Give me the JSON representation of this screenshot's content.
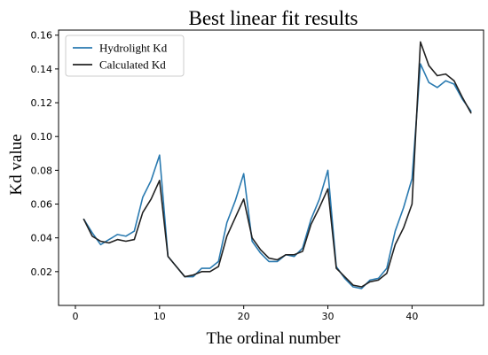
{
  "chart_data": {
    "type": "line",
    "title": "Best linear fit results",
    "xlabel": "The ordinal number",
    "ylabel": "Kd value",
    "xlim": [
      -2,
      48.5
    ],
    "ylim": [
      0.0,
      0.163
    ],
    "xticks": [
      0,
      10,
      20,
      30,
      40
    ],
    "yticks": [
      0.02,
      0.04,
      0.06,
      0.08,
      0.1,
      0.12,
      0.14,
      0.16
    ],
    "ytick_labels": [
      "0.02",
      "0.04",
      "0.06",
      "0.08",
      "0.10",
      "0.12",
      "0.14",
      "0.16"
    ],
    "grid": false,
    "legend_position": "top-left",
    "x": [
      1,
      2,
      3,
      4,
      5,
      6,
      7,
      8,
      9,
      10,
      11,
      12,
      13,
      14,
      15,
      16,
      17,
      18,
      19,
      20,
      21,
      22,
      23,
      24,
      25,
      26,
      27,
      28,
      29,
      30,
      31,
      32,
      33,
      34,
      35,
      36,
      37,
      38,
      39,
      40,
      41,
      42,
      43,
      44,
      45,
      46,
      47
    ],
    "series": [
      {
        "name": "Hydrolight Kd",
        "color": "#2a7ab0",
        "values": [
          0.051,
          0.043,
          0.036,
          0.039,
          0.042,
          0.041,
          0.044,
          0.064,
          0.074,
          0.089,
          0.029,
          0.023,
          0.017,
          0.017,
          0.022,
          0.022,
          0.026,
          0.049,
          0.062,
          0.078,
          0.038,
          0.031,
          0.026,
          0.026,
          0.03,
          0.029,
          0.034,
          0.051,
          0.063,
          0.08,
          0.023,
          0.016,
          0.011,
          0.01,
          0.015,
          0.016,
          0.022,
          0.044,
          0.058,
          0.075,
          0.143,
          0.132,
          0.129,
          0.133,
          0.131,
          0.122,
          0.115
        ]
      },
      {
        "name": "Calculated Kd",
        "color": "#222222",
        "values": [
          0.051,
          0.041,
          0.038,
          0.037,
          0.039,
          0.038,
          0.039,
          0.055,
          0.063,
          0.074,
          0.029,
          0.023,
          0.017,
          0.018,
          0.02,
          0.02,
          0.023,
          0.041,
          0.052,
          0.063,
          0.04,
          0.033,
          0.028,
          0.027,
          0.03,
          0.03,
          0.032,
          0.048,
          0.058,
          0.069,
          0.022,
          0.017,
          0.012,
          0.011,
          0.014,
          0.015,
          0.019,
          0.036,
          0.046,
          0.06,
          0.156,
          0.142,
          0.136,
          0.137,
          0.133,
          0.123,
          0.114
        ]
      }
    ]
  }
}
